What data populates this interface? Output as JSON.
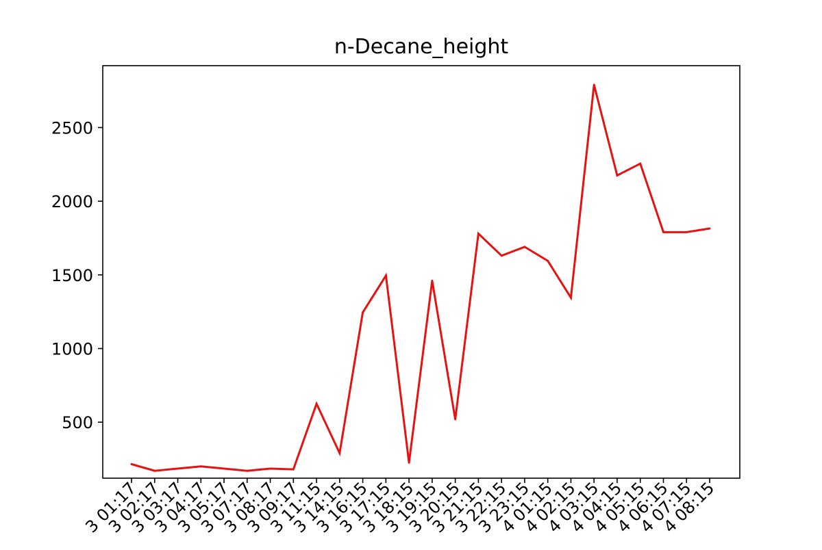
{
  "chart_data": {
    "type": "line",
    "title": "n-Decane_height",
    "xlabel": "",
    "ylabel": "",
    "ylim": [
      120,
      2920
    ],
    "yticks": [
      500,
      1000,
      1500,
      2000,
      2500
    ],
    "grid": false,
    "x": [
      "3 01:17",
      "3 02:17",
      "3 03:17",
      "3 04:17",
      "3 05:17",
      "3 07:17",
      "3 08:17",
      "3 09:17",
      "3 11:15",
      "3 14:15",
      "3 16:15",
      "3 17:15",
      "3 18:15",
      "3 19:15",
      "3 20:15",
      "3 21:15",
      "3 22:15",
      "3 23:15",
      "4 01:15",
      "4 02:15",
      "4 03:15",
      "4 04:15",
      "4 05:15",
      "4 06:15",
      "4 07:15",
      "4 08:15"
    ],
    "series": [
      {
        "color": "#e8110f",
        "values": [
          215,
          170,
          185,
          200,
          185,
          170,
          185,
          180,
          625,
          290,
          1245,
          1495,
          225,
          1460,
          520,
          1780,
          1630,
          1690,
          1595,
          1345,
          2790,
          2175,
          2255,
          1790,
          1790,
          1815
        ]
      }
    ]
  }
}
